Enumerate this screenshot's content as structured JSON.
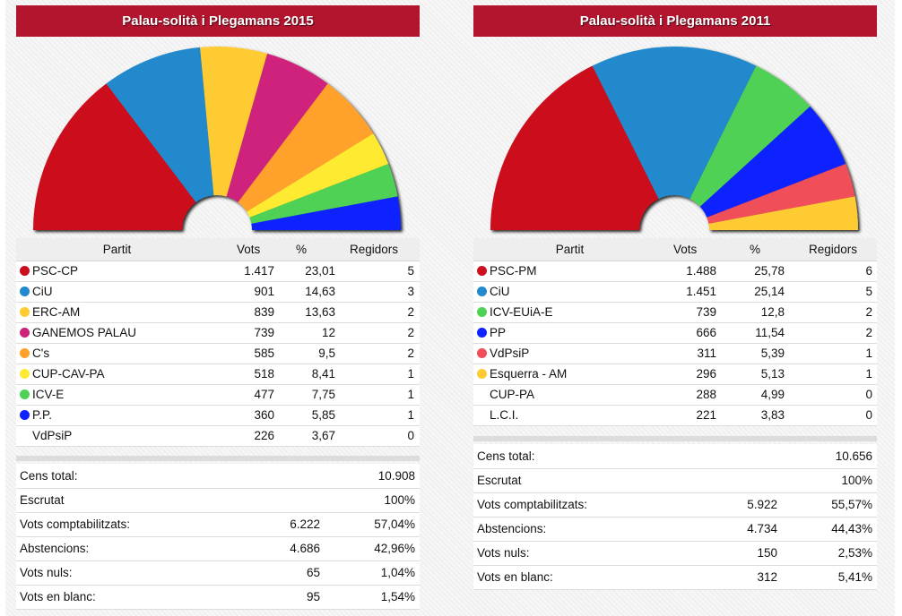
{
  "headers": {
    "party": "Partit",
    "votes": "Vots",
    "pct": "%",
    "seats": "Regidors"
  },
  "panels": [
    {
      "title": "Palau-solità i Plegamans 2015",
      "parties": [
        {
          "name": "PSC-CP",
          "votes": "1.417",
          "pct": "23,01",
          "seats": "5",
          "color": "#cc0f1f"
        },
        {
          "name": "CiU",
          "votes": "901",
          "pct": "14,63",
          "seats": "3",
          "color": "#2289cc"
        },
        {
          "name": "ERC-AM",
          "votes": "839",
          "pct": "13,63",
          "seats": "2",
          "color": "#ffcb33"
        },
        {
          "name": "GANEMOS PALAU",
          "votes": "739",
          "pct": "12",
          "seats": "2",
          "color": "#cf227b"
        },
        {
          "name": "C's",
          "votes": "585",
          "pct": "9,5",
          "seats": "2",
          "color": "#ffa12b"
        },
        {
          "name": "CUP-CAV-PA",
          "votes": "518",
          "pct": "8,41",
          "seats": "1",
          "color": "#ffea33"
        },
        {
          "name": "ICV-E",
          "votes": "477",
          "pct": "7,75",
          "seats": "1",
          "color": "#4fd155"
        },
        {
          "name": "P.P.",
          "votes": "360",
          "pct": "5,85",
          "seats": "1",
          "color": "#0d22ff"
        },
        {
          "name": "VdPsiP",
          "votes": "226",
          "pct": "3,67",
          "seats": "0",
          "color": ""
        }
      ],
      "summary": [
        {
          "label": "Cens total:",
          "value": "",
          "pct": "10.908"
        },
        {
          "label": "Escrutat",
          "value": "",
          "pct": "100%"
        },
        {
          "label": "Vots comptabilitzats:",
          "value": "6.222",
          "pct": "57,04%"
        },
        {
          "label": "Abstencions:",
          "value": "4.686",
          "pct": "42,96%"
        },
        {
          "label": "Vots nuls:",
          "value": "65",
          "pct": "1,04%"
        },
        {
          "label": "Vots en blanc:",
          "value": "95",
          "pct": "1,54%"
        }
      ]
    },
    {
      "title": "Palau-solità i Plegamans 2011",
      "parties": [
        {
          "name": "PSC-PM",
          "votes": "1.488",
          "pct": "25,78",
          "seats": "6",
          "color": "#cc0f1f"
        },
        {
          "name": "CiU",
          "votes": "1.451",
          "pct": "25,14",
          "seats": "5",
          "color": "#2289cc"
        },
        {
          "name": "ICV-EUiA-E",
          "votes": "739",
          "pct": "12,8",
          "seats": "2",
          "color": "#4fd155"
        },
        {
          "name": "PP",
          "votes": "666",
          "pct": "11,54",
          "seats": "2",
          "color": "#0d22ff"
        },
        {
          "name": "VdPsiP",
          "votes": "311",
          "pct": "5,39",
          "seats": "1",
          "color": "#f04f5a"
        },
        {
          "name": "Esquerra - AM",
          "votes": "296",
          "pct": "5,13",
          "seats": "1",
          "color": "#ffcb33"
        },
        {
          "name": "CUP-PA",
          "votes": "288",
          "pct": "4,99",
          "seats": "0",
          "color": ""
        },
        {
          "name": "L.C.I.",
          "votes": "221",
          "pct": "3,83",
          "seats": "0",
          "color": ""
        }
      ],
      "summary": [
        {
          "label": "Cens total:",
          "value": "",
          "pct": "10.656"
        },
        {
          "label": "Escrutat",
          "value": "",
          "pct": "100%"
        },
        {
          "label": "Vots comptabilitzats:",
          "value": "5.922",
          "pct": "55,57%"
        },
        {
          "label": "Abstencions:",
          "value": "4.734",
          "pct": "44,43%"
        },
        {
          "label": "Vots nuls:",
          "value": "150",
          "pct": "2,53%"
        },
        {
          "label": "Vots en blanc:",
          "value": "312",
          "pct": "5,41%"
        }
      ]
    }
  ],
  "chart_data": [
    {
      "type": "pie",
      "title": "Palau-solità i Plegamans 2015",
      "shape": "half-donut (seat distribution)",
      "categories": [
        "PSC-CP",
        "CiU",
        "ERC-AM",
        "GANEMOS PALAU",
        "C's",
        "CUP-CAV-PA",
        "ICV-E",
        "P.P."
      ],
      "values": [
        5,
        3,
        2,
        2,
        2,
        1,
        1,
        1
      ],
      "colors": [
        "#cc0f1f",
        "#2289cc",
        "#ffcb33",
        "#cf227b",
        "#ffa12b",
        "#ffea33",
        "#4fd155",
        "#0d22ff"
      ],
      "total": 17
    },
    {
      "type": "pie",
      "title": "Palau-solità i Plegamans 2011",
      "shape": "half-donut (seat distribution)",
      "categories": [
        "PSC-PM",
        "CiU",
        "ICV-EUiA-E",
        "PP",
        "VdPsiP",
        "Esquerra - AM"
      ],
      "values": [
        6,
        5,
        2,
        2,
        1,
        1
      ],
      "colors": [
        "#cc0f1f",
        "#2289cc",
        "#4fd155",
        "#0d22ff",
        "#f04f5a",
        "#ffcb33"
      ],
      "total": 17
    }
  ]
}
